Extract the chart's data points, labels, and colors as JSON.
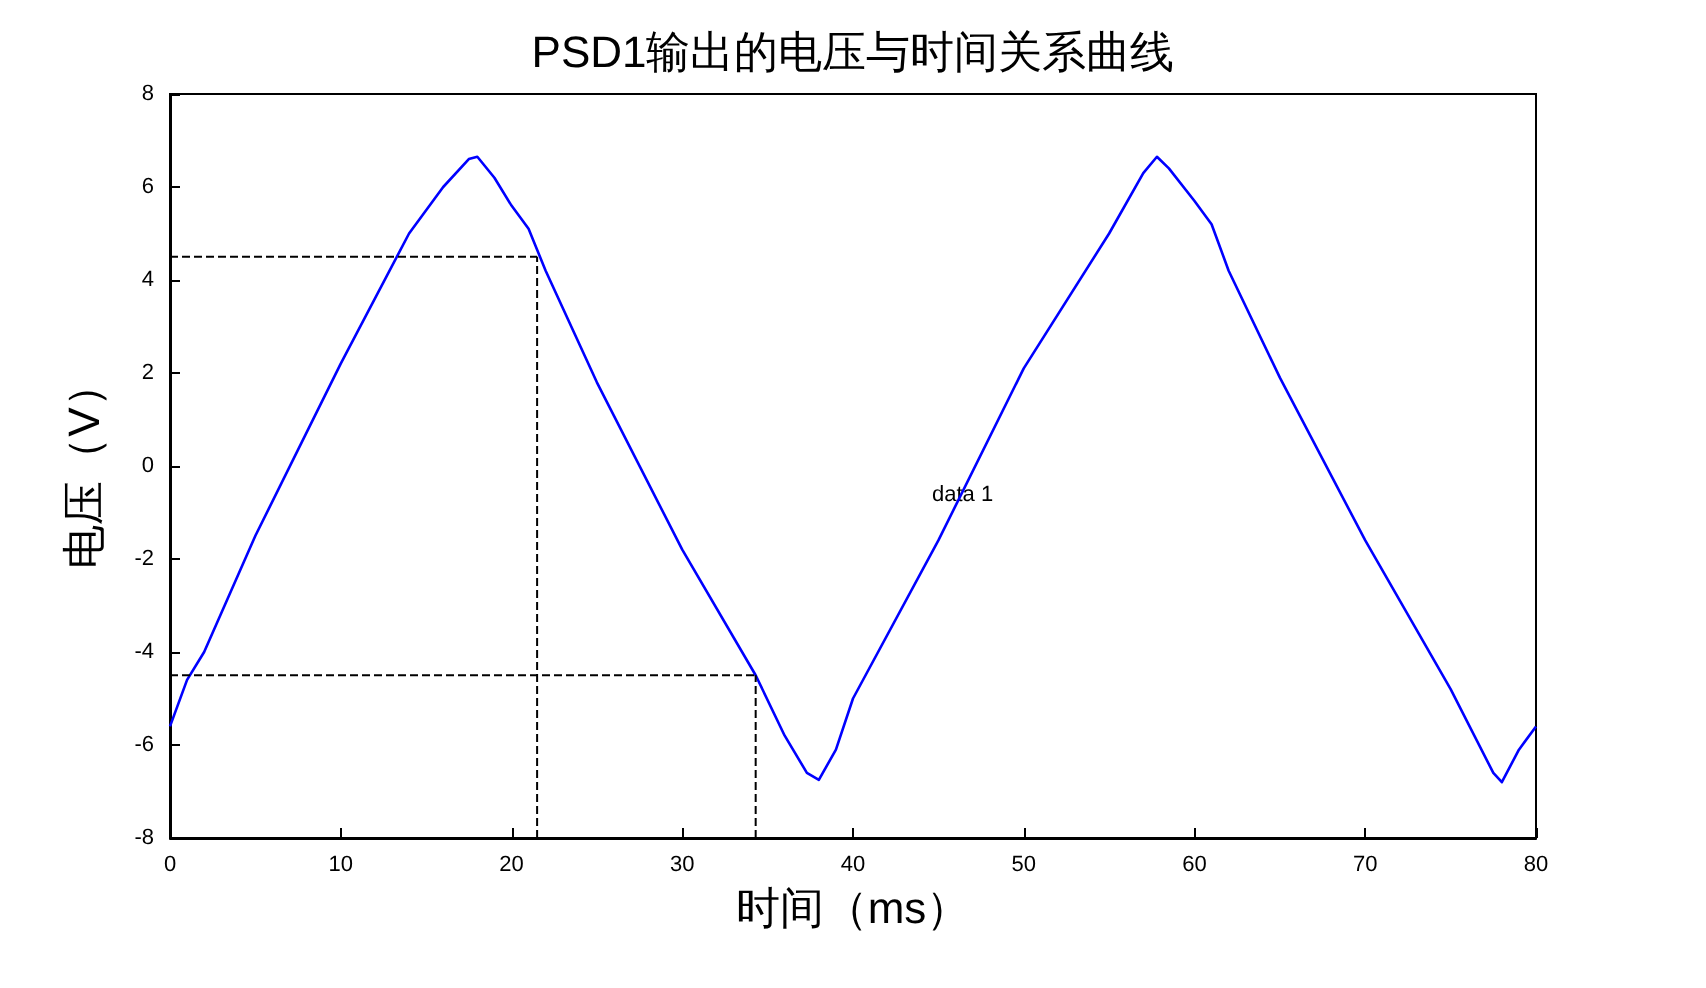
{
  "chart_data": {
    "type": "line",
    "title": "PSD1输出的电压与时间关系曲线",
    "xlabel": "时间（ms）",
    "ylabel": "电压（V）",
    "x": [
      0,
      1,
      2,
      5,
      10,
      14,
      16,
      17.5,
      18,
      19,
      20,
      21,
      22,
      25,
      30,
      34.3,
      36,
      37.3,
      38,
      39,
      40,
      45,
      50,
      55,
      57,
      57.8,
      58.5,
      60,
      61,
      62,
      65,
      70,
      75,
      77.5,
      78,
      79,
      80
    ],
    "series": [
      {
        "color": "#0000ff",
        "values": [
          -5.6,
          -4.6,
          -4.0,
          -1.5,
          2.2,
          5.0,
          6.0,
          6.6,
          6.65,
          6.2,
          5.6,
          5.1,
          4.2,
          1.8,
          -1.8,
          -4.5,
          -5.8,
          -6.6,
          -6.75,
          -6.1,
          -5.0,
          -1.6,
          2.1,
          5.0,
          6.3,
          6.65,
          6.4,
          5.7,
          5.2,
          4.2,
          1.9,
          -1.6,
          -4.8,
          -6.6,
          -6.8,
          -6.1,
          -5.6
        ]
      }
    ],
    "xlim": [
      0,
      80
    ],
    "xticks": [
      0,
      10,
      20,
      30,
      40,
      50,
      60,
      70,
      80
    ],
    "ylim": [
      -8,
      8
    ],
    "yticks": [
      -8,
      -6,
      -4,
      -2,
      0,
      2,
      4,
      6,
      8
    ],
    "grid": false,
    "marker": "none",
    "line_style": "solid",
    "ref_lines": [
      {
        "axis": "y",
        "value": 4.5,
        "color": "#000000",
        "line_style": "dashed"
      },
      {
        "axis": "x",
        "value": 21.5,
        "color": "#000000",
        "line_style": "dashed"
      },
      {
        "axis": "y",
        "value": -4.5,
        "color": "#000000",
        "line_style": "dashed"
      },
      {
        "axis": "x",
        "value": 34.3,
        "color": "#000000",
        "line_style": "dashed"
      }
    ],
    "annotations": [
      "data 1"
    ]
  }
}
